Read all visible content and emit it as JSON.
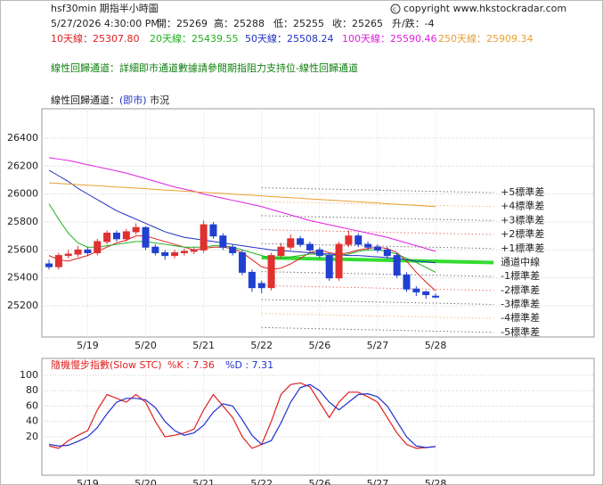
{
  "header": {
    "title": "hsf30min  期指半小時圖",
    "copyright": "copyright www.hkstockradar.com",
    "quote": [
      "5/27/2026 4:30:00 PM",
      "開：25269",
      "高：25288",
      "低：25255",
      "收：25265",
      "升/跌：-4"
    ],
    "notice": "線性回歸通道：詳細即市通道數據請參閱期指阻力支持位-線性回歸通道",
    "subtitle": [
      "線性回歸通道：",
      "(即市)",
      " 市況"
    ]
  },
  "chart_data": [
    {
      "type": "candlestick",
      "x": [
        0,
        1,
        2,
        3,
        4,
        5,
        6,
        7,
        8,
        9,
        10,
        11,
        12,
        13,
        14,
        15,
        16,
        17,
        18,
        19,
        20,
        21,
        22,
        23,
        24,
        25,
        26,
        27,
        28,
        29,
        30,
        31,
        32,
        33,
        34,
        35,
        36,
        37,
        38,
        39,
        40
      ],
      "open": [
        25500,
        25480,
        25560,
        25570,
        25600,
        25580,
        25660,
        25720,
        25680,
        25730,
        25760,
        25620,
        25580,
        25560,
        25580,
        25590,
        25600,
        25780,
        25700,
        25620,
        25580,
        25440,
        25360,
        25330,
        25560,
        25620,
        25680,
        25640,
        25600,
        25560,
        25400,
        25640,
        25700,
        25640,
        25620,
        25600,
        25560,
        25420,
        25320,
        25300,
        25269
      ],
      "high": [
        25530,
        25580,
        25600,
        25630,
        25620,
        25680,
        25740,
        25740,
        25750,
        25790,
        25770,
        25640,
        25600,
        25600,
        25610,
        25620,
        25810,
        25800,
        25720,
        25640,
        25600,
        25460,
        25380,
        25580,
        25650,
        25710,
        25700,
        25660,
        25620,
        25580,
        25660,
        25740,
        25720,
        25660,
        25640,
        25620,
        25580,
        25440,
        25340,
        25310,
        25288
      ],
      "low": [
        25460,
        25460,
        25540,
        25550,
        25560,
        25560,
        25640,
        25660,
        25660,
        25710,
        25600,
        25560,
        25530,
        25540,
        25560,
        25570,
        25580,
        25680,
        25600,
        25560,
        25420,
        25300,
        25290,
        25310,
        25540,
        25600,
        25620,
        25580,
        25540,
        25380,
        25380,
        25620,
        25620,
        25600,
        25580,
        25540,
        25400,
        25300,
        25270,
        25250,
        25255
      ],
      "close": [
        25480,
        25560,
        25570,
        25600,
        25580,
        25660,
        25720,
        25680,
        25730,
        25760,
        25620,
        25580,
        25560,
        25580,
        25590,
        25600,
        25780,
        25700,
        25620,
        25580,
        25440,
        25330,
        25330,
        25560,
        25620,
        25680,
        25640,
        25600,
        25560,
        25400,
        25640,
        25700,
        25640,
        25620,
        25600,
        25560,
        25420,
        25320,
        25300,
        25280,
        25265
      ],
      "up_color": "#e03030",
      "down_color": "#2040d0",
      "series": [
        {
          "name": "10天線：25307.80",
          "color": "#e02020",
          "values": [
            25560,
            25530,
            25520,
            25540,
            25560,
            25590,
            25620,
            25650,
            25670,
            25700,
            25700,
            25680,
            25660,
            25640,
            25620,
            25600,
            25610,
            25620,
            25620,
            25610,
            25580,
            25530,
            25480,
            25460,
            25470,
            25500,
            25540,
            25580,
            25600,
            25580,
            25570,
            25580,
            25600,
            25610,
            25620,
            25610,
            25580,
            25520,
            25440,
            25370,
            25308
          ]
        },
        {
          "name": "20天線：25439.55",
          "color": "#20b020",
          "values": [
            25930,
            25820,
            25720,
            25650,
            25620,
            25620,
            25630,
            25640,
            25650,
            25660,
            25660,
            25650,
            25640,
            25630,
            25620,
            25620,
            25620,
            25630,
            25630,
            25620,
            25600,
            25580,
            25560,
            25540,
            25540,
            25550,
            25560,
            25570,
            25570,
            25560,
            25560,
            25570,
            25590,
            25600,
            25600,
            25590,
            25570,
            25540,
            25510,
            25475,
            25440
          ]
        },
        {
          "name": "50天線：25508.24",
          "color": "#2030c0",
          "values": [
            26170,
            26130,
            26090,
            26040,
            26000,
            25960,
            25920,
            25880,
            25850,
            25820,
            25790,
            25760,
            25730,
            25710,
            25690,
            25680,
            25670,
            25660,
            25650,
            25640,
            25630,
            25620,
            25610,
            25600,
            25595,
            25590,
            25585,
            25580,
            25575,
            25570,
            25565,
            25560,
            25560,
            25555,
            25550,
            25545,
            25540,
            25530,
            25520,
            25515,
            25508
          ]
        },
        {
          "name": "100天線：25590.46",
          "color": "#e020e0",
          "values": [
            26260,
            26250,
            26240,
            26225,
            26210,
            26195,
            26180,
            26165,
            26150,
            26130,
            26110,
            26090,
            26070,
            26050,
            26035,
            26020,
            26000,
            25985,
            25970,
            25955,
            25940,
            25925,
            25910,
            25890,
            25870,
            25850,
            25830,
            25810,
            25795,
            25780,
            25765,
            25750,
            25735,
            25720,
            25705,
            25690,
            25670,
            25650,
            25630,
            25610,
            25590
          ]
        },
        {
          "name": "250天線：25909.34",
          "color": "#e8a030",
          "values": [
            26080,
            26076,
            26072,
            26067,
            26063,
            26059,
            26055,
            26050,
            26046,
            26042,
            26038,
            26033,
            26029,
            26025,
            26021,
            26016,
            26012,
            26008,
            26004,
            25999,
            25995,
            25991,
            25987,
            25982,
            25978,
            25974,
            25970,
            25965,
            25961,
            25957,
            25953,
            25948,
            25944,
            25940,
            25936,
            25931,
            25927,
            25923,
            25919,
            25914,
            25910
          ]
        }
      ],
      "channel": [
        {
          "name": "+5標準差",
          "color": "#333333",
          "x": [
            22,
            46
          ],
          "values": [
            26045,
            26010
          ]
        },
        {
          "name": "+4標準差",
          "color": "#e8a040",
          "x": [
            22,
            46
          ],
          "values": [
            25945,
            25910
          ]
        },
        {
          "name": "+3標準差",
          "color": "#333333",
          "x": [
            22,
            46
          ],
          "values": [
            25845,
            25810
          ]
        },
        {
          "name": "+2標準差",
          "color": "#e03030",
          "x": [
            22,
            46
          ],
          "values": [
            25745,
            25710
          ]
        },
        {
          "name": "+1標準差",
          "color": "#333333",
          "x": [
            22,
            46
          ],
          "values": [
            25645,
            25610
          ]
        },
        {
          "name": "通道中線",
          "color": "#33dd33",
          "x": [
            22,
            46
          ],
          "values": [
            25545,
            25510
          ]
        },
        {
          "name": "-1標準差",
          "color": "#333333",
          "x": [
            22,
            46
          ],
          "values": [
            25445,
            25410
          ]
        },
        {
          "name": "-2標準差",
          "color": "#e03030",
          "x": [
            22,
            46
          ],
          "values": [
            25345,
            25310
          ]
        },
        {
          "name": "-3標準差",
          "color": "#333333",
          "x": [
            22,
            46
          ],
          "values": [
            25245,
            25210
          ]
        },
        {
          "name": "-4標準差",
          "color": "#e8a040",
          "x": [
            22,
            46
          ],
          "values": [
            25145,
            25110
          ]
        },
        {
          "name": "-5標準差",
          "color": "#333333",
          "x": [
            22,
            46
          ],
          "values": [
            25045,
            25010
          ]
        }
      ],
      "xlim": [
        -0.74,
        56.4
      ],
      "ylim": [
        24977,
        26610
      ],
      "xticks": [
        {
          "value": 4,
          "label": "5/19"
        },
        {
          "value": 10,
          "label": "5/20"
        },
        {
          "value": 16,
          "label": "5/21"
        },
        {
          "value": 22,
          "label": "5/22"
        },
        {
          "value": 28,
          "label": "5/26"
        },
        {
          "value": 34,
          "label": "5/27"
        },
        {
          "value": 40,
          "label": "5/28"
        }
      ],
      "yticks": [
        25200,
        25400,
        25600,
        25800,
        26000,
        26200,
        26400
      ],
      "grid": true
    },
    {
      "type": "line",
      "title": "隨機慢步指數(Slow STC)",
      "x": [
        0,
        1,
        2,
        3,
        4,
        5,
        6,
        7,
        8,
        9,
        10,
        11,
        12,
        13,
        14,
        15,
        16,
        17,
        18,
        19,
        20,
        21,
        22,
        23,
        24,
        25,
        26,
        27,
        28,
        29,
        30,
        31,
        32,
        33,
        34,
        35,
        36,
        37,
        38,
        39,
        40
      ],
      "series": [
        {
          "name": "%K : 7.36",
          "color": "#e02020",
          "values": [
            8,
            5,
            15,
            22,
            28,
            55,
            75,
            70,
            65,
            75,
            65,
            40,
            20,
            22,
            25,
            30,
            55,
            75,
            60,
            45,
            20,
            5,
            10,
            40,
            75,
            88,
            90,
            85,
            65,
            45,
            65,
            78,
            78,
            72,
            65,
            45,
            25,
            10,
            5,
            6,
            7.36
          ]
        },
        {
          "name": "%D : 7.31",
          "color": "#2030d0",
          "values": [
            10,
            8,
            9,
            14,
            20,
            32,
            50,
            65,
            70,
            70,
            68,
            58,
            40,
            28,
            22,
            25,
            35,
            52,
            63,
            60,
            42,
            22,
            10,
            15,
            38,
            65,
            84,
            88,
            80,
            65,
            55,
            65,
            75,
            76,
            72,
            60,
            40,
            20,
            8,
            6,
            7.31
          ]
        }
      ],
      "xlim": [
        -0.74,
        56.4
      ],
      "ylim": [
        -30,
        122
      ],
      "xticks": [
        {
          "value": 4,
          "label": "5/19"
        },
        {
          "value": 10,
          "label": "5/20"
        },
        {
          "value": 16,
          "label": "5/21"
        },
        {
          "value": 22,
          "label": "5/22"
        },
        {
          "value": 28,
          "label": "5/26"
        },
        {
          "value": 34,
          "label": "5/27"
        },
        {
          "value": 40,
          "label": "5/28"
        }
      ],
      "yticks": [
        20,
        40,
        60,
        80,
        100
      ],
      "grid": true
    }
  ]
}
